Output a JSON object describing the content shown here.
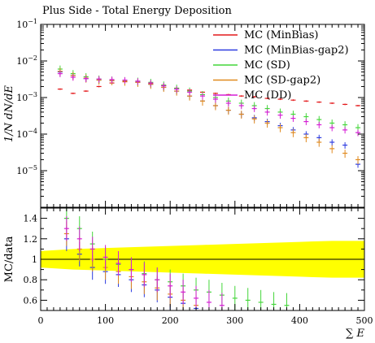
{
  "chart_data": [
    {
      "type": "scatter",
      "title": "Plus Side - Total Energy Deposition",
      "ylabel": "1/N dN/dE",
      "yscale": "log",
      "xlim": [
        0,
        500
      ],
      "ylim": [
        1e-06,
        0.1
      ],
      "y_tick_labels": [
        {
          "base": "10",
          "exp": "−1",
          "value": 0.1
        },
        {
          "base": "10",
          "exp": "−2",
          "value": 0.01
        },
        {
          "base": "10",
          "exp": "−3",
          "value": 0.001
        },
        {
          "base": "10",
          "exp": "−4",
          "value": 0.0001
        },
        {
          "base": "10",
          "exp": "−5",
          "value": 1e-05
        }
      ],
      "legend_position": "top-right",
      "series": [
        {
          "name": "MC (MinBias)",
          "color": "#e41a1c",
          "points": [
            [
              30,
              0.0017
            ],
            [
              50,
              0.0013
            ],
            [
              70,
              0.0015
            ],
            [
              90,
              0.002
            ],
            [
              110,
              0.0025
            ],
            [
              130,
              0.0027
            ],
            [
              150,
              0.0026
            ],
            [
              170,
              0.0024
            ],
            [
              190,
              0.0021
            ],
            [
              210,
              0.0018
            ],
            [
              230,
              0.0016
            ],
            [
              250,
              0.0014
            ],
            [
              270,
              0.0013
            ],
            [
              290,
              0.0012
            ],
            [
              310,
              0.0011
            ],
            [
              330,
              0.00105
            ],
            [
              350,
              0.00095
            ],
            [
              370,
              0.0009
            ],
            [
              390,
              0.00085
            ],
            [
              410,
              0.0008
            ],
            [
              430,
              0.00075
            ],
            [
              450,
              0.0007
            ],
            [
              470,
              0.00065
            ],
            [
              490,
              0.0006
            ]
          ],
          "rel_err": 0.05
        },
        {
          "name": "MC (MinBias-gap2)",
          "color": "#2c3be0",
          "points": [
            [
              30,
              0.005
            ],
            [
              50,
              0.004
            ],
            [
              70,
              0.0033
            ],
            [
              90,
              0.003
            ],
            [
              110,
              0.0029
            ],
            [
              130,
              0.0028
            ],
            [
              150,
              0.0026
            ],
            [
              170,
              0.0023
            ],
            [
              190,
              0.0019
            ],
            [
              210,
              0.0015
            ],
            [
              230,
              0.0011
            ],
            [
              250,
              0.0008
            ],
            [
              270,
              0.0006
            ],
            [
              290,
              0.00045
            ],
            [
              310,
              0.00035
            ],
            [
              330,
              0.00028
            ],
            [
              350,
              0.00022
            ],
            [
              370,
              0.00017
            ],
            [
              390,
              0.00013
            ],
            [
              410,
              0.0001
            ],
            [
              430,
              8e-05
            ],
            [
              450,
              6e-05
            ],
            [
              470,
              5e-05
            ],
            [
              490,
              1.5e-05
            ]
          ],
          "rel_err": 0.2
        },
        {
          "name": "MC (SD)",
          "color": "#44d63a",
          "points": [
            [
              30,
              0.006
            ],
            [
              50,
              0.0045
            ],
            [
              70,
              0.0037
            ],
            [
              90,
              0.0032
            ],
            [
              110,
              0.003
            ],
            [
              130,
              0.0029
            ],
            [
              150,
              0.0028
            ],
            [
              170,
              0.0026
            ],
            [
              190,
              0.0022
            ],
            [
              210,
              0.0018
            ],
            [
              230,
              0.0015
            ],
            [
              250,
              0.0012
            ],
            [
              270,
              0.001
            ],
            [
              290,
              0.0008
            ],
            [
              310,
              0.0007
            ],
            [
              330,
              0.0006
            ],
            [
              350,
              0.0005
            ],
            [
              370,
              0.0004
            ],
            [
              390,
              0.00035
            ],
            [
              410,
              0.0003
            ],
            [
              430,
              0.00025
            ],
            [
              450,
              0.0002
            ],
            [
              470,
              0.00018
            ],
            [
              490,
              0.00015
            ]
          ],
          "rel_err": 0.25
        },
        {
          "name": "MC (SD-gap2)",
          "color": "#e08a1e",
          "points": [
            [
              30,
              0.0052
            ],
            [
              50,
              0.004
            ],
            [
              70,
              0.0034
            ],
            [
              90,
              0.003
            ],
            [
              110,
              0.0029
            ],
            [
              130,
              0.0028
            ],
            [
              150,
              0.0026
            ],
            [
              170,
              0.0023
            ],
            [
              190,
              0.0019
            ],
            [
              210,
              0.0015
            ],
            [
              230,
              0.0011
            ],
            [
              250,
              0.0008
            ],
            [
              270,
              0.0006
            ],
            [
              290,
              0.00045
            ],
            [
              310,
              0.00035
            ],
            [
              330,
              0.00026
            ],
            [
              350,
              0.0002
            ],
            [
              370,
              0.00015
            ],
            [
              390,
              0.00011
            ],
            [
              410,
              8e-05
            ],
            [
              430,
              6e-05
            ],
            [
              450,
              4e-05
            ],
            [
              470,
              3e-05
            ],
            [
              490,
              2e-05
            ]
          ],
          "rel_err": 0.25
        },
        {
          "name": "MC (DD)",
          "color": "#d61ed6",
          "points": [
            [
              30,
              0.0045
            ],
            [
              50,
              0.0036
            ],
            [
              70,
              0.0033
            ],
            [
              90,
              0.0032
            ],
            [
              110,
              0.0031
            ],
            [
              130,
              0.003
            ],
            [
              150,
              0.0028
            ],
            [
              170,
              0.0025
            ],
            [
              190,
              0.0021
            ],
            [
              210,
              0.0017
            ],
            [
              230,
              0.0014
            ],
            [
              250,
              0.0011
            ],
            [
              270,
              0.0009
            ],
            [
              290,
              0.0007
            ],
            [
              310,
              0.0006
            ],
            [
              330,
              0.0005
            ],
            [
              350,
              0.0004
            ],
            [
              370,
              0.00033
            ],
            [
              390,
              0.00027
            ],
            [
              410,
              0.00022
            ],
            [
              430,
              0.00018
            ],
            [
              450,
              0.00015
            ],
            [
              470,
              0.00013
            ],
            [
              490,
              0.00011
            ]
          ],
          "rel_err": 0.2
        }
      ]
    },
    {
      "type": "scatter",
      "ylabel": "MC/data",
      "xlabel": "∑ E",
      "xlim": [
        0,
        500
      ],
      "ylim": [
        0.5,
        1.5
      ],
      "x_ticks": [
        0,
        100,
        200,
        300,
        400,
        500
      ],
      "y_ticks": [
        0.6,
        0.8,
        1,
        1.2,
        1.4
      ],
      "reference_line": 1,
      "data_uncertainty_band": {
        "color": "#ffff00",
        "x": [
          0,
          50,
          100,
          150,
          200,
          250,
          300,
          350,
          400,
          450,
          500
        ],
        "half_width": [
          0.08,
          0.1,
          0.11,
          0.12,
          0.13,
          0.14,
          0.15,
          0.16,
          0.17,
          0.18,
          0.18
        ]
      },
      "series": [
        {
          "name": "MC (MinBias-gap2)",
          "color": "#2c3be0",
          "points": [
            [
              40,
              1.2
            ],
            [
              60,
              1.05
            ],
            [
              80,
              0.92
            ],
            [
              100,
              0.88
            ],
            [
              120,
              0.85
            ],
            [
              140,
              0.8
            ],
            [
              160,
              0.75
            ],
            [
              180,
              0.7
            ],
            [
              200,
              0.63
            ],
            [
              220,
              0.57
            ],
            [
              240,
              0.52
            ]
          ]
        },
        {
          "name": "MC (SD)",
          "color": "#44d63a",
          "points": [
            [
              40,
              1.4
            ],
            [
              60,
              1.3
            ],
            [
              80,
              1.15
            ],
            [
              100,
              1.0
            ],
            [
              120,
              0.95
            ],
            [
              140,
              0.9
            ],
            [
              160,
              0.86
            ],
            [
              180,
              0.8
            ],
            [
              200,
              0.78
            ],
            [
              220,
              0.74
            ],
            [
              240,
              0.7
            ],
            [
              260,
              0.68
            ],
            [
              280,
              0.65
            ],
            [
              300,
              0.62
            ],
            [
              320,
              0.6
            ],
            [
              340,
              0.58
            ],
            [
              360,
              0.56
            ],
            [
              380,
              0.55
            ]
          ]
        },
        {
          "name": "MC (SD-gap2)",
          "color": "#e08a1e",
          "points": [
            [
              40,
              1.25
            ],
            [
              60,
              1.1
            ],
            [
              80,
              1.0
            ],
            [
              100,
              0.92
            ],
            [
              120,
              0.88
            ],
            [
              140,
              0.83
            ],
            [
              160,
              0.78
            ],
            [
              180,
              0.72
            ],
            [
              200,
              0.66
            ],
            [
              220,
              0.6
            ],
            [
              240,
              0.55
            ]
          ]
        },
        {
          "name": "MC (DD)",
          "color": "#d61ed6",
          "points": [
            [
              40,
              1.3
            ],
            [
              60,
              1.2
            ],
            [
              80,
              1.1
            ],
            [
              100,
              1.02
            ],
            [
              120,
              0.96
            ],
            [
              140,
              0.9
            ],
            [
              160,
              0.85
            ],
            [
              180,
              0.8
            ],
            [
              200,
              0.74
            ],
            [
              220,
              0.68
            ],
            [
              240,
              0.62
            ],
            [
              260,
              0.58
            ],
            [
              280,
              0.55
            ]
          ]
        }
      ]
    }
  ]
}
